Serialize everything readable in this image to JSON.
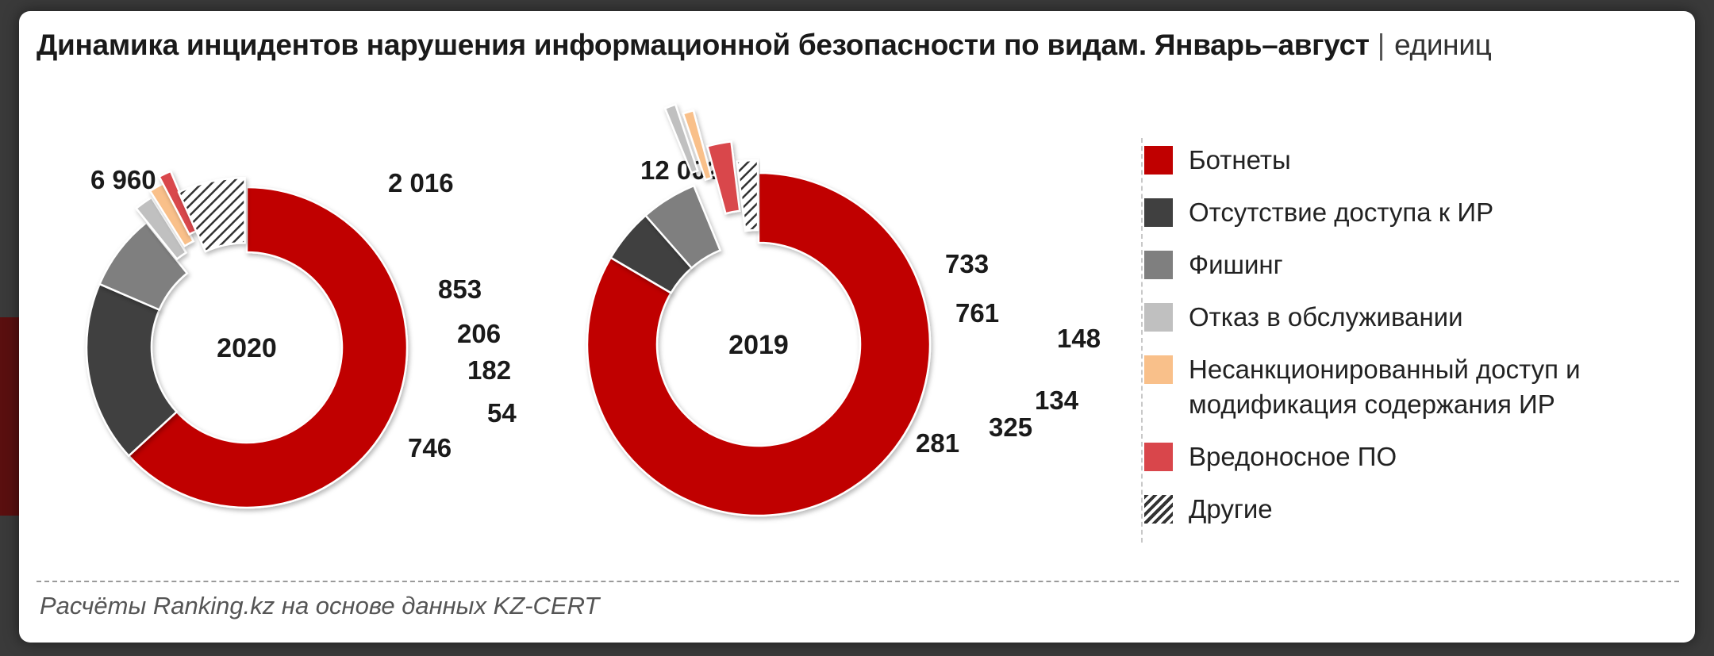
{
  "title": "Динамика инцидентов нарушения информационной безопасности по видам. Январь–август",
  "title_separator": "|",
  "title_unit": "единиц",
  "source": "Расчёты Ranking.kz на основе данных KZ-CERT",
  "colors": {
    "botnets": "#c00000",
    "no_access": "#404040",
    "phishing": "#7f7f7f",
    "dos": "#c0c0c0",
    "unauthorized": "#f9c08a",
    "malware": "#d9464b",
    "other": "#ffffff"
  },
  "legend": [
    {
      "key": "botnets",
      "label": "Ботнеты",
      "color": "#c00000"
    },
    {
      "key": "no_access",
      "label": "Отсутствие доступа к ИР",
      "color": "#404040"
    },
    {
      "key": "phishing",
      "label": "Фишинг",
      "color": "#7f7f7f"
    },
    {
      "key": "dos",
      "label": "Отказ в обслуживании",
      "color": "#c0c0c0"
    },
    {
      "key": "unauthorized",
      "label": "Несанкционированный доступ и модификация содержания ИР",
      "color": "#f9c08a"
    },
    {
      "key": "malware",
      "label": "Вредоносное ПО",
      "color": "#d9464b"
    },
    {
      "key": "other",
      "label": "Другие",
      "color": "hatch"
    }
  ],
  "chart_data": [
    {
      "type": "pie",
      "center_label": "2020",
      "slices": [
        {
          "key": "botnets",
          "value": 6960,
          "label": "6 960"
        },
        {
          "key": "no_access",
          "value": 2016,
          "label": "2 016"
        },
        {
          "key": "phishing",
          "value": 853,
          "label": "853"
        },
        {
          "key": "dos",
          "value": 206,
          "label": "206"
        },
        {
          "key": "unauthorized",
          "value": 182,
          "label": "182"
        },
        {
          "key": "malware",
          "value": 54,
          "label": "54"
        },
        {
          "key": "other",
          "value": 746,
          "label": "746"
        }
      ]
    },
    {
      "type": "pie",
      "center_label": "2019",
      "slices": [
        {
          "key": "botnets",
          "value": 12002,
          "label": "12 002"
        },
        {
          "key": "no_access",
          "value": 733,
          "label": "733"
        },
        {
          "key": "phishing",
          "value": 761,
          "label": "761"
        },
        {
          "key": "dos",
          "value": 148,
          "label": "148"
        },
        {
          "key": "unauthorized",
          "value": 134,
          "label": "134"
        },
        {
          "key": "malware",
          "value": 325,
          "label": "325"
        },
        {
          "key": "other",
          "value": 281,
          "label": "281"
        }
      ]
    }
  ]
}
